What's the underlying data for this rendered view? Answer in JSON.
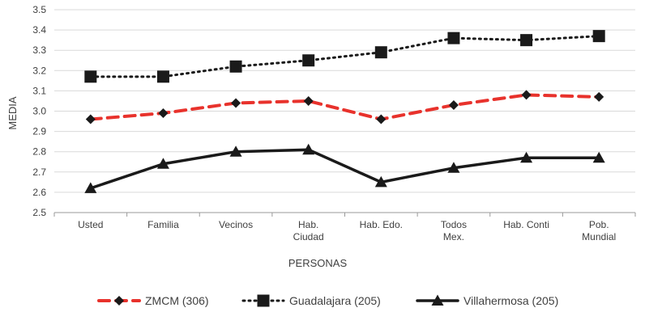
{
  "chart_data": {
    "type": "line",
    "xlabel": "PERSONAS",
    "ylabel": "MEDIA",
    "ylim": [
      2.5,
      3.5
    ],
    "yticks": [
      "2.5",
      "2.6",
      "2.7",
      "2.8",
      "2.9",
      "3.0",
      "3.1",
      "3.2",
      "3.3",
      "3.4",
      "3.5"
    ],
    "categories": [
      [
        "Usted"
      ],
      [
        "Familia"
      ],
      [
        "Vecinos"
      ],
      [
        "Hab.",
        "Ciudad"
      ],
      [
        "Hab. Edo."
      ],
      [
        "Todos",
        "Mex."
      ],
      [
        "Hab. Conti"
      ],
      [
        "Pob.",
        "Mundial"
      ]
    ],
    "grid": true,
    "legend_position": "bottom",
    "series": [
      {
        "name": "ZMCM (306)",
        "color": "#e8322c",
        "line_style": "dashed",
        "marker": "diamond",
        "values": [
          2.96,
          2.99,
          3.04,
          3.05,
          2.96,
          3.03,
          3.08,
          3.07
        ]
      },
      {
        "name": "Guadalajara (205)",
        "color": "#1a1a1a",
        "line_style": "dotted",
        "marker": "square",
        "values": [
          3.17,
          3.17,
          3.22,
          3.25,
          3.29,
          3.36,
          3.35,
          3.37
        ]
      },
      {
        "name": "Villahermosa (205)",
        "color": "#1a1a1a",
        "line_style": "solid",
        "marker": "triangle",
        "values": [
          2.62,
          2.74,
          2.8,
          2.81,
          2.65,
          2.72,
          2.77,
          2.77
        ]
      }
    ]
  }
}
